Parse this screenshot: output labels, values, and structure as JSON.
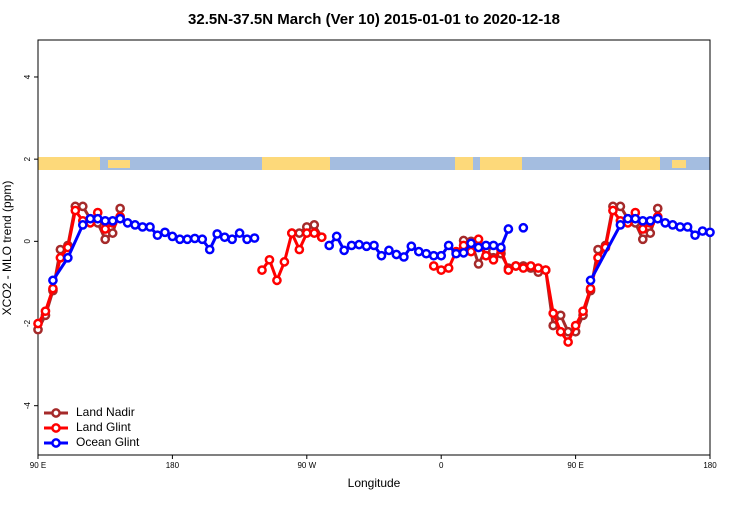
{
  "chart_data": {
    "type": "line",
    "title": "32.5N-37.5N March (Ver 10)   2015-01-01 to 2020-12-18",
    "x_label": "Longitude",
    "y_label": "XCO2 - MLO trend (ppm)",
    "xlim": [
      90,
      540
    ],
    "xticks": [
      {
        "value": 90,
        "label": "90 E"
      },
      {
        "value": 180,
        "label": "180"
      },
      {
        "value": 270,
        "label": "90 W"
      },
      {
        "value": 360,
        "label": "0"
      },
      {
        "value": 450,
        "label": "90 E"
      },
      {
        "value": 540,
        "label": "180"
      }
    ],
    "ylim": [
      -5.2,
      4.9
    ],
    "yticks": [
      -4,
      -2,
      0,
      2,
      4
    ],
    "legend": "bottom-left",
    "series": [
      {
        "name": "Land Nadir",
        "color": "#a52a2a",
        "x": [
          90,
          95,
          100,
          105,
          110,
          115,
          120,
          125,
          130,
          135,
          140,
          145,
          150,
          260,
          265,
          270,
          275,
          280,
          285,
          375,
          380,
          385,
          390,
          395,
          400,
          405,
          410,
          415,
          420,
          425,
          430,
          435,
          440,
          445,
          450,
          455,
          460,
          465,
          470,
          475,
          480,
          485,
          490,
          495,
          500,
          505
        ],
        "values": [
          -2.15,
          -1.8,
          -1.2,
          -0.2,
          -0.1,
          0.85,
          0.85,
          0.55,
          0.45,
          0.05,
          0.2,
          0.8,
          null,
          0.2,
          0.2,
          0.35,
          0.4,
          0.1,
          null,
          0.02,
          0.0,
          -0.55,
          -0.2,
          -0.4,
          -0.3,
          -0.65,
          -0.6,
          -0.6,
          -0.65,
          -0.75,
          -0.7,
          -2.05,
          -1.8,
          -2.2,
          -2.2,
          -1.8,
          -1.2,
          -0.2,
          -0.1,
          0.85,
          0.85,
          0.55,
          0.45,
          0.05,
          0.2,
          0.8
        ]
      },
      {
        "name": "Land Glint",
        "color": "#ff0000",
        "x": [
          90,
          95,
          100,
          105,
          110,
          115,
          120,
          125,
          130,
          135,
          140,
          145,
          150,
          240,
          245,
          250,
          255,
          260,
          265,
          270,
          275,
          280,
          285,
          355,
          360,
          365,
          370,
          375,
          380,
          385,
          390,
          395,
          400,
          405,
          410,
          415,
          420,
          425,
          430,
          435,
          440,
          445,
          450,
          455,
          460,
          465,
          470,
          475,
          480,
          485,
          490,
          495,
          500,
          505
        ],
        "values": [
          -2.0,
          -1.7,
          -1.15,
          -0.4,
          -0.15,
          0.75,
          0.5,
          0.45,
          0.7,
          0.3,
          0.45,
          0.6,
          null,
          -0.7,
          -0.45,
          -0.95,
          -0.5,
          0.2,
          -0.2,
          0.2,
          0.2,
          0.1,
          null,
          -0.6,
          -0.7,
          -0.65,
          -0.25,
          -0.1,
          -0.25,
          0.05,
          -0.35,
          -0.45,
          -0.2,
          -0.7,
          -0.6,
          -0.65,
          -0.6,
          -0.65,
          -0.7,
          -1.75,
          -2.2,
          -2.45,
          -2.05,
          -1.7,
          -1.15,
          -0.4,
          -0.15,
          0.75,
          0.5,
          0.45,
          0.7,
          0.3,
          0.45,
          0.6
        ]
      },
      {
        "name": "Ocean Glint",
        "color": "#0000ff",
        "x": [
          100,
          110,
          120,
          125,
          130,
          135,
          140,
          145,
          150,
          155,
          160,
          165,
          170,
          175,
          180,
          185,
          190,
          195,
          200,
          205,
          210,
          215,
          220,
          225,
          230,
          235,
          240,
          285,
          290,
          295,
          300,
          305,
          310,
          315,
          320,
          325,
          330,
          335,
          340,
          345,
          350,
          355,
          360,
          365,
          370,
          375,
          380,
          385,
          390,
          395,
          400,
          405,
          410,
          415,
          420,
          460,
          480,
          485,
          490,
          495,
          500,
          505,
          510,
          515,
          520,
          525,
          530,
          535,
          540
        ],
        "values": [
          -0.95,
          -0.4,
          0.4,
          0.55,
          0.55,
          0.5,
          0.5,
          0.55,
          0.45,
          0.4,
          0.35,
          0.35,
          0.15,
          0.22,
          0.12,
          0.05,
          0.05,
          0.07,
          0.05,
          -0.2,
          0.18,
          0.1,
          0.05,
          0.2,
          0.05,
          0.08,
          null,
          -0.1,
          0.12,
          -0.22,
          -0.1,
          -0.08,
          -0.12,
          -0.1,
          -0.35,
          -0.22,
          -0.32,
          -0.38,
          -0.12,
          -0.25,
          -0.3,
          -0.35,
          -0.35,
          -0.1,
          -0.3,
          -0.28,
          -0.05,
          -0.15,
          -0.1,
          -0.1,
          -0.15,
          0.3,
          null,
          0.33,
          null,
          -0.95,
          0.4,
          0.55,
          0.55,
          0.5,
          0.5,
          0.55,
          0.45,
          0.4,
          0.35,
          0.35,
          0.15,
          0.25,
          0.22
        ]
      }
    ]
  }
}
